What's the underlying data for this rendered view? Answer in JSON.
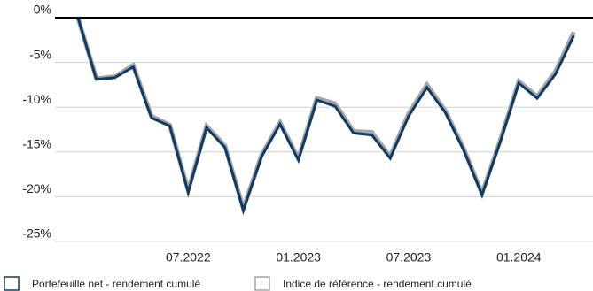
{
  "chart_data": {
    "type": "line",
    "categories": [
      null,
      null,
      null,
      null,
      null,
      null,
      "07.2022",
      null,
      null,
      null,
      null,
      null,
      "01.2023",
      null,
      null,
      null,
      null,
      null,
      "07.2023",
      null,
      null,
      null,
      null,
      null,
      "01.2024",
      null,
      null,
      null
    ],
    "series": [
      {
        "name": "Indice de référence - rendement cumulé",
        "color": "#a6a6a6",
        "values": [
          0,
          -6.8,
          -6.6,
          -5.3,
          -11.0,
          -12.0,
          -19.3,
          -12.1,
          -14.3,
          -21.3,
          -15.3,
          -11.7,
          -15.7,
          -9.0,
          -9.6,
          -12.7,
          -12.8,
          -15.5,
          -10.7,
          -7.5,
          -10.4,
          -14.6,
          -19.6,
          -13.6,
          -7.1,
          -8.8,
          -6.0,
          -1.6
        ]
      },
      {
        "name": "Portefeuille net - rendement cumulé",
        "color": "#0d3a66",
        "values": [
          0,
          -6.9,
          -6.7,
          -5.5,
          -11.2,
          -12.1,
          -19.5,
          -12.3,
          -14.5,
          -21.5,
          -15.5,
          -11.9,
          -15.9,
          -9.2,
          -9.9,
          -12.9,
          -13.1,
          -15.7,
          -11.0,
          -7.8,
          -10.6,
          -14.8,
          -19.8,
          -13.8,
          -7.3,
          -9.0,
          -6.3,
          -2.0
        ]
      }
    ],
    "ylim": [
      -25,
      0
    ],
    "yticks": [
      {
        "value": 0,
        "label": "0%"
      },
      {
        "value": -5,
        "label": "-5%"
      },
      {
        "value": -10,
        "label": "-10%"
      },
      {
        "value": -15,
        "label": "-15%"
      },
      {
        "value": -20,
        "label": "-20%"
      },
      {
        "value": -25,
        "label": "-25%"
      }
    ],
    "grid": true,
    "legend": "bottom-left"
  }
}
